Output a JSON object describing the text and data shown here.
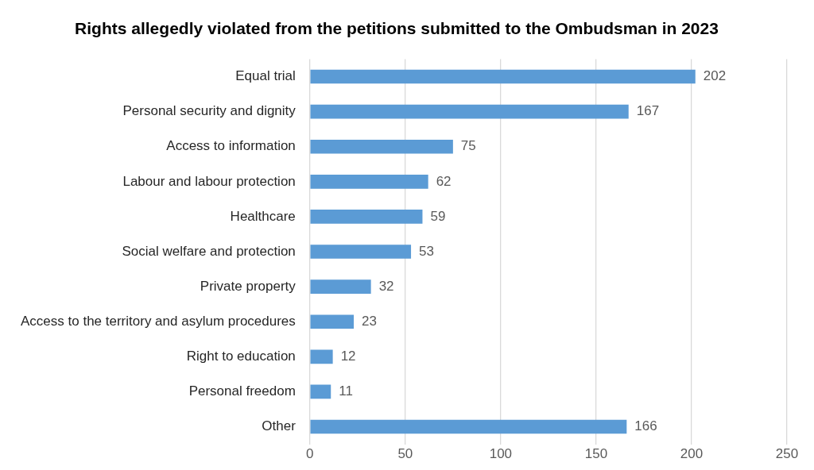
{
  "chart_data": {
    "type": "bar",
    "orientation": "horizontal",
    "title": "Rights allegedly violated from the petitions submitted to the Ombudsman in 2023",
    "categories": [
      "Equal trial",
      "Personal security and dignity",
      "Access to information",
      "Labour and labour protection",
      "Healthcare",
      "Social welfare and protection",
      "Private property",
      "Access to the territory and asylum procedures",
      "Right to education",
      "Personal freedom",
      "Other"
    ],
    "values": [
      202,
      167,
      75,
      62,
      59,
      53,
      32,
      23,
      12,
      11,
      166
    ],
    "color": "#5b9bd5",
    "xlim": [
      0,
      250
    ],
    "xticks": [
      0,
      50,
      100,
      150,
      200,
      250
    ],
    "grid": "x",
    "data_labels": true,
    "legend": false
  }
}
